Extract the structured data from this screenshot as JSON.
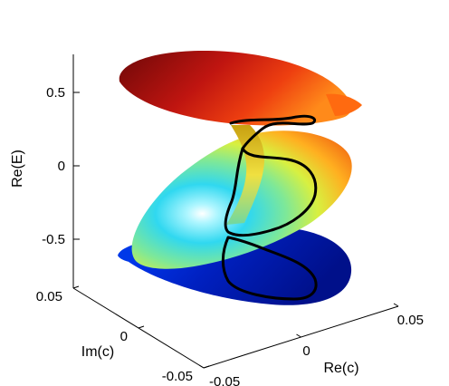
{
  "chart_data": {
    "type": "surface",
    "title": "",
    "xlabel": "Re(c)",
    "ylabel": "Im(c)",
    "zlabel": "Re(E)",
    "x_ticks": [
      {
        "value": -0.05,
        "label": "-0.05"
      },
      {
        "value": 0,
        "label": "0"
      },
      {
        "value": 0.05,
        "label": "0.05"
      }
    ],
    "y_ticks": [
      {
        "value": 0.05,
        "label": "0.05"
      },
      {
        "value": 0,
        "label": "0"
      },
      {
        "value": -0.05,
        "label": "-0.05"
      }
    ],
    "z_ticks": [
      {
        "value": 0.5,
        "label": "0.5"
      },
      {
        "value": 0,
        "label": "0"
      },
      {
        "value": -0.5,
        "label": "-0.5"
      }
    ],
    "xlim": [
      -0.05,
      0.05
    ],
    "ylim": [
      -0.05,
      0.05
    ],
    "zlim": [
      -0.75,
      0.75
    ],
    "colormap": "jet",
    "color_range": [
      -0.75,
      0.75
    ],
    "grid": false,
    "sheets": [
      {
        "role": "top sheet",
        "z_level": 0.6,
        "color": "#b01010"
      },
      {
        "role": "middle sheet",
        "z_level": 0.0,
        "color": "#3fd3d0"
      },
      {
        "role": "bottom sheet",
        "z_level": -0.6,
        "color": "#0820a8"
      }
    ],
    "curve_color": "#000000"
  }
}
